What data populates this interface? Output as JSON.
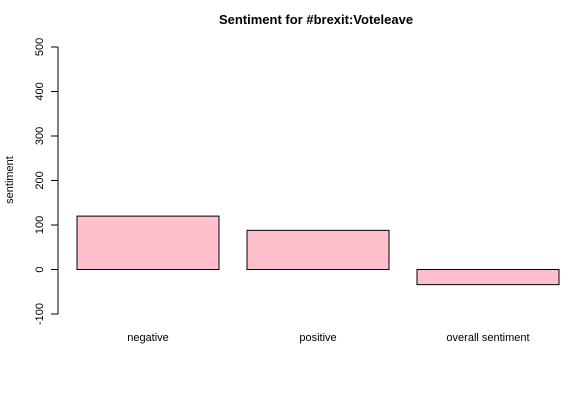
{
  "chart_data": {
    "type": "bar",
    "title": "Sentiment for #brexit:Voteleave",
    "xlabel": "",
    "ylabel": "sentiment",
    "categories": [
      "negative",
      "positive",
      "overall sentiment"
    ],
    "values": [
      120,
      88,
      -34
    ],
    "ylim": [
      -100,
      500
    ],
    "yticks": [
      -100,
      0,
      100,
      200,
      300,
      400,
      500
    ],
    "bar_color": "#ffc0cb",
    "border_color": "#000000",
    "grid": false,
    "legend": "none"
  }
}
